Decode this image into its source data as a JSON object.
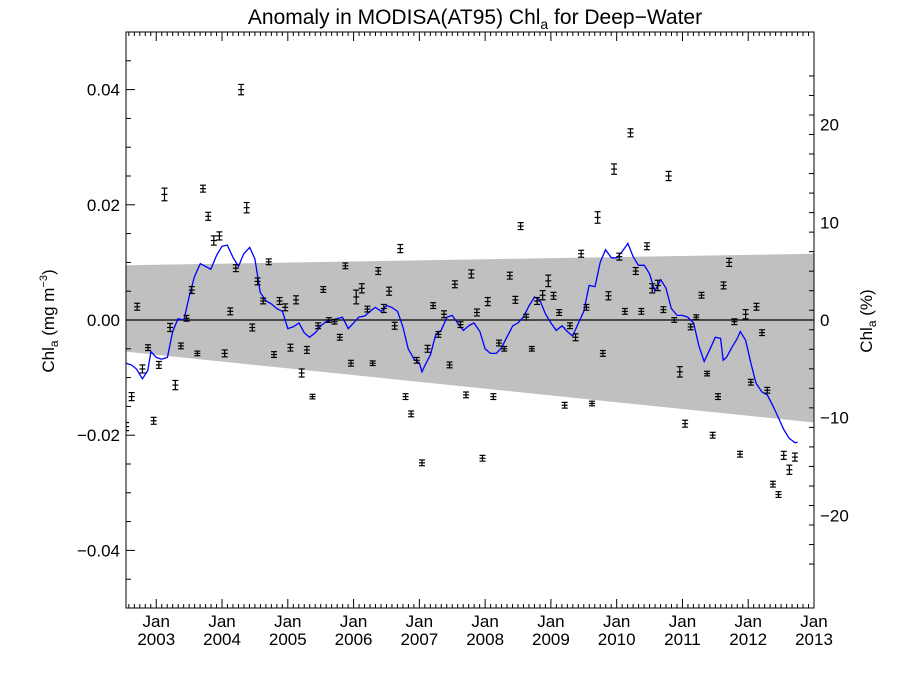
{
  "chart_data": {
    "type": "scatter",
    "title_main": "Anomaly in MODISA(AT95) Chl",
    "title_sub": "a",
    "title_tail": " for Deep−Water",
    "ylabel_left_main": "Chl",
    "ylabel_left_sub": "a",
    "ylabel_left_tail": " (mg m",
    "ylabel_left_sup": "−3",
    "ylabel_left_close": ")",
    "ylabel_right_main": "Chl",
    "ylabel_right_sub": "a",
    "ylabel_right_tail": " (%)",
    "xlim": [
      2002.54,
      2013.0
    ],
    "ylim": [
      -0.05,
      0.05
    ],
    "ylim_right": [
      -29.5,
      29.5
    ],
    "y_ticks": [
      0.04,
      0.02,
      0.0,
      -0.02,
      -0.04
    ],
    "y_tick_labels": [
      "0.04",
      "0.02",
      "0.00",
      "−0.02",
      "−0.04"
    ],
    "y_right_ticks": [
      20,
      10,
      0,
      -10,
      -20
    ],
    "y_right_tick_labels": [
      "20",
      "10",
      "0",
      "−10",
      "−20"
    ],
    "x_ticks": [
      {
        "x": 2003.0,
        "month": "Jan",
        "year": "2003"
      },
      {
        "x": 2004.0,
        "month": "Jan",
        "year": "2004"
      },
      {
        "x": 2005.0,
        "month": "Jan",
        "year": "2005"
      },
      {
        "x": 2006.0,
        "month": "Jan",
        "year": "2006"
      },
      {
        "x": 2007.0,
        "month": "Jan",
        "year": "2007"
      },
      {
        "x": 2008.0,
        "month": "Jan",
        "year": "2008"
      },
      {
        "x": 2009.0,
        "month": "Jan",
        "year": "2009"
      },
      {
        "x": 2010.0,
        "month": "Jan",
        "year": "2010"
      },
      {
        "x": 2011.0,
        "month": "Jan",
        "year": "2011"
      },
      {
        "x": 2012.0,
        "month": "Jan",
        "year": "2012"
      },
      {
        "x": 2013.0,
        "month": "Jan",
        "year": "2013"
      }
    ],
    "band": {
      "start_x": 2002.54,
      "start_upper": 0.0095,
      "start_lower": -0.0055,
      "end_x": 2013.0,
      "end_upper": 0.0115,
      "end_lower": -0.0178,
      "color": "#c0c0c0"
    },
    "zero_line": 0.0,
    "line_color": "#0000ff",
    "point_color": "#000000",
    "points": [
      {
        "x": 2002.54,
        "y": -0.0185,
        "e": 0.0007
      },
      {
        "x": 2002.625,
        "y": -0.0133,
        "e": 0.0007
      },
      {
        "x": 2002.71,
        "y": 0.0023,
        "e": 0.0006
      },
      {
        "x": 2002.79,
        "y": -0.0085,
        "e": 0.0007
      },
      {
        "x": 2002.875,
        "y": -0.0048,
        "e": 0.0005
      },
      {
        "x": 2002.96,
        "y": -0.0175,
        "e": 0.0006
      },
      {
        "x": 2003.04,
        "y": -0.0078,
        "e": 0.0006
      },
      {
        "x": 2003.125,
        "y": 0.0218,
        "e": 0.0011
      },
      {
        "x": 2003.21,
        "y": -0.0013,
        "e": 0.0007
      },
      {
        "x": 2003.29,
        "y": -0.0113,
        "e": 0.0008
      },
      {
        "x": 2003.375,
        "y": -0.0045,
        "e": 0.0005
      },
      {
        "x": 2003.46,
        "y": 0.0003,
        "e": 0.0005
      },
      {
        "x": 2003.54,
        "y": 0.0052,
        "e": 0.0006
      },
      {
        "x": 2003.625,
        "y": -0.0058,
        "e": 0.0004
      },
      {
        "x": 2003.71,
        "y": 0.0228,
        "e": 0.0006
      },
      {
        "x": 2003.79,
        "y": 0.018,
        "e": 0.0007
      },
      {
        "x": 2003.875,
        "y": 0.0138,
        "e": 0.0008
      },
      {
        "x": 2003.96,
        "y": 0.0146,
        "e": 0.0007
      },
      {
        "x": 2004.04,
        "y": -0.0058,
        "e": 0.0006
      },
      {
        "x": 2004.125,
        "y": 0.0015,
        "e": 0.0006
      },
      {
        "x": 2004.21,
        "y": 0.009,
        "e": 0.0006
      },
      {
        "x": 2004.29,
        "y": 0.04,
        "e": 0.0009
      },
      {
        "x": 2004.375,
        "y": 0.0195,
        "e": 0.0009
      },
      {
        "x": 2004.46,
        "y": -0.0013,
        "e": 0.0006
      },
      {
        "x": 2004.54,
        "y": 0.0067,
        "e": 0.0006
      },
      {
        "x": 2004.625,
        "y": 0.0033,
        "e": 0.0005
      },
      {
        "x": 2004.71,
        "y": 0.0101,
        "e": 0.0005
      },
      {
        "x": 2004.79,
        "y": -0.006,
        "e": 0.0005
      },
      {
        "x": 2004.875,
        "y": 0.0033,
        "e": 0.0006
      },
      {
        "x": 2004.96,
        "y": 0.0022,
        "e": 0.0006
      },
      {
        "x": 2005.04,
        "y": -0.0048,
        "e": 0.0006
      },
      {
        "x": 2005.125,
        "y": 0.0035,
        "e": 0.0007
      },
      {
        "x": 2005.21,
        "y": -0.0092,
        "e": 0.0007
      },
      {
        "x": 2005.29,
        "y": -0.0052,
        "e": 0.0006
      },
      {
        "x": 2005.375,
        "y": -0.0133,
        "e": 0.0004
      },
      {
        "x": 2005.46,
        "y": -0.001,
        "e": 0.0005
      },
      {
        "x": 2005.54,
        "y": 0.0053,
        "e": 0.0005
      },
      {
        "x": 2005.625,
        "y": 0.0,
        "e": 0.0004
      },
      {
        "x": 2005.71,
        "y": -0.0003,
        "e": 0.0004
      },
      {
        "x": 2005.79,
        "y": -0.003,
        "e": 0.0005
      },
      {
        "x": 2005.875,
        "y": 0.0094,
        "e": 0.0005
      },
      {
        "x": 2005.96,
        "y": -0.0075,
        "e": 0.0005
      },
      {
        "x": 2006.04,
        "y": 0.004,
        "e": 0.0012
      },
      {
        "x": 2006.125,
        "y": 0.0055,
        "e": 0.0008
      },
      {
        "x": 2006.21,
        "y": 0.0019,
        "e": 0.0005
      },
      {
        "x": 2006.29,
        "y": -0.0075,
        "e": 0.0004
      },
      {
        "x": 2006.375,
        "y": 0.0085,
        "e": 0.0006
      },
      {
        "x": 2006.46,
        "y": 0.002,
        "e": 0.0007
      },
      {
        "x": 2006.54,
        "y": 0.005,
        "e": 0.0007
      },
      {
        "x": 2006.625,
        "y": -0.001,
        "e": 0.0006
      },
      {
        "x": 2006.71,
        "y": 0.0124,
        "e": 0.0007
      },
      {
        "x": 2006.79,
        "y": -0.0133,
        "e": 0.0005
      },
      {
        "x": 2006.875,
        "y": -0.0163,
        "e": 0.0005
      },
      {
        "x": 2006.96,
        "y": -0.007,
        "e": 0.0005
      },
      {
        "x": 2007.04,
        "y": -0.0248,
        "e": 0.0005
      },
      {
        "x": 2007.125,
        "y": -0.005,
        "e": 0.0006
      },
      {
        "x": 2007.21,
        "y": 0.0025,
        "e": 0.0005
      },
      {
        "x": 2007.29,
        "y": -0.0025,
        "e": 0.0005
      },
      {
        "x": 2007.375,
        "y": 0.001,
        "e": 0.0006
      },
      {
        "x": 2007.46,
        "y": -0.0078,
        "e": 0.0005
      },
      {
        "x": 2007.54,
        "y": 0.0062,
        "e": 0.0006
      },
      {
        "x": 2007.625,
        "y": -0.0008,
        "e": 0.0005
      },
      {
        "x": 2007.71,
        "y": -0.013,
        "e": 0.0005
      },
      {
        "x": 2007.79,
        "y": 0.008,
        "e": 0.0007
      },
      {
        "x": 2007.875,
        "y": 0.0013,
        "e": 0.0006
      },
      {
        "x": 2007.96,
        "y": -0.024,
        "e": 0.0005
      },
      {
        "x": 2008.04,
        "y": 0.0032,
        "e": 0.0007
      },
      {
        "x": 2008.125,
        "y": -0.0133,
        "e": 0.0005
      },
      {
        "x": 2008.21,
        "y": -0.004,
        "e": 0.0005
      },
      {
        "x": 2008.29,
        "y": -0.005,
        "e": 0.0004
      },
      {
        "x": 2008.375,
        "y": 0.0077,
        "e": 0.0006
      },
      {
        "x": 2008.46,
        "y": 0.0035,
        "e": 0.0006
      },
      {
        "x": 2008.54,
        "y": 0.0163,
        "e": 0.0006
      },
      {
        "x": 2008.625,
        "y": 0.0005,
        "e": 0.0005
      },
      {
        "x": 2008.71,
        "y": -0.005,
        "e": 0.0004
      },
      {
        "x": 2008.79,
        "y": 0.0033,
        "e": 0.0006
      },
      {
        "x": 2008.875,
        "y": 0.0043,
        "e": 0.0008
      },
      {
        "x": 2008.96,
        "y": 0.0068,
        "e": 0.001
      },
      {
        "x": 2009.04,
        "y": 0.0042,
        "e": 0.0006
      },
      {
        "x": 2009.125,
        "y": 0.0013,
        "e": 0.0005
      },
      {
        "x": 2009.21,
        "y": -0.0148,
        "e": 0.0005
      },
      {
        "x": 2009.29,
        "y": -0.001,
        "e": 0.0005
      },
      {
        "x": 2009.375,
        "y": -0.003,
        "e": 0.0006
      },
      {
        "x": 2009.46,
        "y": 0.0115,
        "e": 0.0006
      },
      {
        "x": 2009.54,
        "y": 0.0022,
        "e": 0.0005
      },
      {
        "x": 2009.625,
        "y": -0.0145,
        "e": 0.0004
      },
      {
        "x": 2009.71,
        "y": 0.0178,
        "e": 0.001
      },
      {
        "x": 2009.79,
        "y": -0.0058,
        "e": 0.0005
      },
      {
        "x": 2009.875,
        "y": 0.0042,
        "e": 0.0007
      },
      {
        "x": 2009.96,
        "y": 0.0262,
        "e": 0.0009
      },
      {
        "x": 2010.04,
        "y": 0.011,
        "e": 0.0006
      },
      {
        "x": 2010.125,
        "y": 0.0015,
        "e": 0.0005
      },
      {
        "x": 2010.21,
        "y": 0.0325,
        "e": 0.0007
      },
      {
        "x": 2010.29,
        "y": 0.0085,
        "e": 0.0006
      },
      {
        "x": 2010.375,
        "y": 0.0015,
        "e": 0.0005
      },
      {
        "x": 2010.46,
        "y": 0.0128,
        "e": 0.0006
      },
      {
        "x": 2010.54,
        "y": 0.0055,
        "e": 0.0008
      },
      {
        "x": 2010.625,
        "y": 0.006,
        "e": 0.0009
      },
      {
        "x": 2010.71,
        "y": 0.0018,
        "e": 0.0005
      },
      {
        "x": 2010.79,
        "y": 0.025,
        "e": 0.0008
      },
      {
        "x": 2010.875,
        "y": 0.0,
        "e": 0.0004
      },
      {
        "x": 2010.96,
        "y": -0.009,
        "e": 0.0009
      },
      {
        "x": 2011.04,
        "y": -0.018,
        "e": 0.0006
      },
      {
        "x": 2011.125,
        "y": -0.0012,
        "e": 0.0005
      },
      {
        "x": 2011.21,
        "y": 0.0005,
        "e": 0.0004
      },
      {
        "x": 2011.29,
        "y": 0.0043,
        "e": 0.0005
      },
      {
        "x": 2011.375,
        "y": -0.0093,
        "e": 0.0004
      },
      {
        "x": 2011.46,
        "y": -0.02,
        "e": 0.0005
      },
      {
        "x": 2011.54,
        "y": -0.0133,
        "e": 0.0005
      },
      {
        "x": 2011.625,
        "y": 0.006,
        "e": 0.0006
      },
      {
        "x": 2011.71,
        "y": 0.01,
        "e": 0.0007
      },
      {
        "x": 2011.79,
        "y": -0.0003,
        "e": 0.0005
      },
      {
        "x": 2011.875,
        "y": -0.0233,
        "e": 0.0005
      },
      {
        "x": 2011.96,
        "y": 0.001,
        "e": 0.0008
      },
      {
        "x": 2012.04,
        "y": -0.0108,
        "e": 0.0005
      },
      {
        "x": 2012.125,
        "y": 0.0023,
        "e": 0.0006
      },
      {
        "x": 2012.21,
        "y": -0.0022,
        "e": 0.0005
      },
      {
        "x": 2012.29,
        "y": -0.0122,
        "e": 0.0005
      },
      {
        "x": 2012.375,
        "y": -0.0285,
        "e": 0.0005
      },
      {
        "x": 2012.46,
        "y": -0.0303,
        "e": 0.0005
      },
      {
        "x": 2012.54,
        "y": -0.0235,
        "e": 0.0007
      },
      {
        "x": 2012.625,
        "y": -0.026,
        "e": 0.0008
      },
      {
        "x": 2012.71,
        "y": -0.0238,
        "e": 0.0007
      }
    ],
    "smooth_line": [
      [
        2002.54,
        -0.0075
      ],
      [
        2002.62,
        -0.0078
      ],
      [
        2002.7,
        -0.0085
      ],
      [
        2002.79,
        -0.0102
      ],
      [
        2002.87,
        -0.0088
      ],
      [
        2002.92,
        -0.0055
      ],
      [
        2003.0,
        -0.0065
      ],
      [
        2003.08,
        -0.0068
      ],
      [
        2003.17,
        -0.0065
      ],
      [
        2003.25,
        -0.002
      ],
      [
        2003.33,
        0.0002
      ],
      [
        2003.42,
        0.0
      ],
      [
        2003.5,
        0.004
      ],
      [
        2003.58,
        0.0075
      ],
      [
        2003.67,
        0.0098
      ],
      [
        2003.75,
        0.0093
      ],
      [
        2003.83,
        0.0088
      ],
      [
        2003.92,
        0.0113
      ],
      [
        2004.0,
        0.0128
      ],
      [
        2004.08,
        0.013
      ],
      [
        2004.17,
        0.0108
      ],
      [
        2004.25,
        0.0093
      ],
      [
        2004.33,
        0.0115
      ],
      [
        2004.42,
        0.0126
      ],
      [
        2004.5,
        0.0106
      ],
      [
        2004.58,
        0.0048
      ],
      [
        2004.67,
        0.0033
      ],
      [
        2004.75,
        0.0028
      ],
      [
        2004.83,
        0.002
      ],
      [
        2004.92,
        0.0015
      ],
      [
        2005.0,
        -0.0015
      ],
      [
        2005.08,
        -0.0012
      ],
      [
        2005.17,
        -0.0005
      ],
      [
        2005.25,
        -0.0022
      ],
      [
        2005.33,
        -0.003
      ],
      [
        2005.42,
        -0.0022
      ],
      [
        2005.5,
        -0.001
      ],
      [
        2005.58,
        -0.0003
      ],
      [
        2005.67,
        0.0
      ],
      [
        2005.75,
        0.0002
      ],
      [
        2005.83,
        0.0005
      ],
      [
        2005.92,
        -0.0015
      ],
      [
        2006.0,
        -0.0005
      ],
      [
        2006.08,
        0.0005
      ],
      [
        2006.17,
        0.0007
      ],
      [
        2006.25,
        0.0015
      ],
      [
        2006.33,
        0.0022
      ],
      [
        2006.42,
        0.0015
      ],
      [
        2006.5,
        0.0025
      ],
      [
        2006.58,
        0.0022
      ],
      [
        2006.67,
        0.0015
      ],
      [
        2006.75,
        -0.0012
      ],
      [
        2006.83,
        -0.005
      ],
      [
        2006.92,
        -0.0068
      ],
      [
        2007.0,
        -0.0075
      ],
      [
        2007.04,
        -0.009
      ],
      [
        2007.08,
        -0.008
      ],
      [
        2007.17,
        -0.006
      ],
      [
        2007.25,
        -0.0025
      ],
      [
        2007.33,
        -0.0018
      ],
      [
        2007.42,
        0.0005
      ],
      [
        2007.5,
        0.0008
      ],
      [
        2007.58,
        -0.0005
      ],
      [
        2007.67,
        -0.0018
      ],
      [
        2007.75,
        -0.001
      ],
      [
        2007.83,
        -0.0005
      ],
      [
        2007.92,
        -0.002
      ],
      [
        2008.0,
        -0.005
      ],
      [
        2008.08,
        -0.0058
      ],
      [
        2008.17,
        -0.0058
      ],
      [
        2008.25,
        -0.0048
      ],
      [
        2008.33,
        -0.003
      ],
      [
        2008.42,
        -0.001
      ],
      [
        2008.5,
        -0.0005
      ],
      [
        2008.58,
        0.0005
      ],
      [
        2008.67,
        0.0025
      ],
      [
        2008.75,
        0.004
      ],
      [
        2008.83,
        0.0035
      ],
      [
        2008.92,
        0.001
      ],
      [
        2009.0,
        -0.0005
      ],
      [
        2009.08,
        -0.0018
      ],
      [
        2009.17,
        -0.001
      ],
      [
        2009.25,
        -0.002
      ],
      [
        2009.33,
        -0.0028
      ],
      [
        2009.42,
        -0.0005
      ],
      [
        2009.5,
        0.0015
      ],
      [
        2009.58,
        0.006
      ],
      [
        2009.67,
        0.0058
      ],
      [
        2009.75,
        0.01
      ],
      [
        2009.83,
        0.0122
      ],
      [
        2009.92,
        0.0108
      ],
      [
        2010.0,
        0.0108
      ],
      [
        2010.08,
        0.0118
      ],
      [
        2010.17,
        0.0133
      ],
      [
        2010.25,
        0.011
      ],
      [
        2010.33,
        0.0095
      ],
      [
        2010.42,
        0.0095
      ],
      [
        2010.5,
        0.008
      ],
      [
        2010.58,
        0.005
      ],
      [
        2010.67,
        0.007
      ],
      [
        2010.75,
        0.0055
      ],
      [
        2010.83,
        0.002
      ],
      [
        2010.92,
        0.0008
      ],
      [
        2011.0,
        0.0008
      ],
      [
        2011.08,
        0.0005
      ],
      [
        2011.17,
        -0.0005
      ],
      [
        2011.25,
        -0.0045
      ],
      [
        2011.33,
        -0.0072
      ],
      [
        2011.42,
        -0.005
      ],
      [
        2011.5,
        -0.003
      ],
      [
        2011.58,
        -0.0032
      ],
      [
        2011.62,
        -0.007
      ],
      [
        2011.67,
        -0.0065
      ],
      [
        2011.75,
        -0.0048
      ],
      [
        2011.83,
        -0.0033
      ],
      [
        2011.88,
        -0.002
      ],
      [
        2011.96,
        -0.0035
      ],
      [
        2012.04,
        -0.0075
      ],
      [
        2012.12,
        -0.011
      ],
      [
        2012.21,
        -0.0125
      ],
      [
        2012.29,
        -0.013
      ],
      [
        2012.38,
        -0.015
      ],
      [
        2012.46,
        -0.017
      ],
      [
        2012.54,
        -0.019
      ],
      [
        2012.62,
        -0.0205
      ],
      [
        2012.71,
        -0.0213
      ],
      [
        2012.75,
        -0.0212
      ]
    ]
  }
}
